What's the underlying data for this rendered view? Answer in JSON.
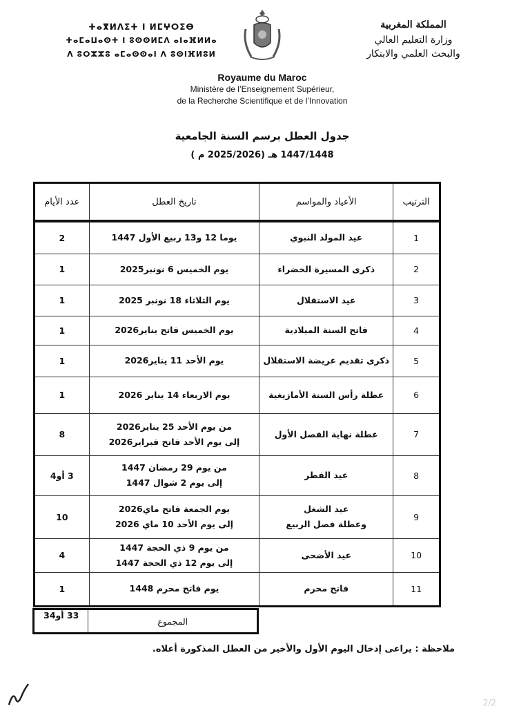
{
  "header": {
    "tifinagh_lines": [
      "ⵜⴰⴳⵍⴷⵉⵜ ⵏ ⵍⵎⵖⵔⵉⴱ",
      "ⵜⴰⵎⴰⵡⴰⵙⵜ ⵏ ⵓⵙⵙⵍⵎⴷ ⴰⵏⴰⴼⵍⵍⴰ",
      "ⴷ ⵓⵔⵣⵣⵓ ⴰⵎⴰⵙⵙⴰⵏ ⴷ ⵓⵙⵏⴼⵍⵓⵍ"
    ],
    "arabic_lines": [
      "المملكة المغربية",
      "وزارة التعليم العالي",
      "والبحث العلمي والابتكار"
    ],
    "french_title": "Royaume du Maroc",
    "french_lines": [
      "Ministère de l’Enseignement Supérieur,",
      "de la Recherche Scientifique et de l’Innovation"
    ],
    "emblem": "moroccan-coat-of-arms"
  },
  "document": {
    "title": "جدول العطل برسم السنة الجامعية",
    "subtitle": "1447/1448 هـ (2025/2026 م )"
  },
  "table": {
    "columns": [
      "الترتيب",
      "الأعياد والمواسم",
      "تاريخ العطل",
      "عدد الأيام"
    ],
    "rows": [
      {
        "rank": "1",
        "name": [
          "عيد المولد النبوي"
        ],
        "dates": [
          "يوما 12 و13 ربيع الأول 1447"
        ],
        "days": "2"
      },
      {
        "rank": "2",
        "name": [
          "ذكرى المسيرة الخضراء"
        ],
        "dates": [
          "يوم الخميس 6 نونبر2025"
        ],
        "days": "1"
      },
      {
        "rank": "3",
        "name": [
          "عيد الاستقلال"
        ],
        "dates": [
          "يوم الثلاثاء 18 نونبر 2025"
        ],
        "days": "1"
      },
      {
        "rank": "4",
        "name": [
          "فاتح السنة الميلادية"
        ],
        "dates": [
          "يوم الخميس فاتح يناير2026"
        ],
        "days": "1"
      },
      {
        "rank": "5",
        "name": [
          "ذكرى تقديم عريضة الاستقلال"
        ],
        "dates": [
          "يوم الأحد 11 يناير2026"
        ],
        "days": "1"
      },
      {
        "rank": "6",
        "name": [
          "عطلة رأس السنة الأمازيغية"
        ],
        "dates": [
          "يوم الاربعاء 14 يناير 2026"
        ],
        "days": "1"
      },
      {
        "rank": "7",
        "name": [
          "عطلة نهاية الفصل الأول"
        ],
        "dates": [
          "من يوم الأحد 25 يناير2026",
          "إلى يوم الأحد فاتح فبراير2026"
        ],
        "days": "8"
      },
      {
        "rank": "8",
        "name": [
          "عيد الفطر"
        ],
        "dates": [
          "من يوم 29 رمضان 1447",
          "إلى يوم 2 شوال 1447"
        ],
        "days": "3 أو4"
      },
      {
        "rank": "9",
        "name": [
          "عيد الشغل",
          "وعطلة فصل الربيع"
        ],
        "dates": [
          "يوم الجمعة فاتح ماي2026",
          "إلى يوم الأحد 10 ماي 2026"
        ],
        "days": "10"
      },
      {
        "rank": "10",
        "name": [
          "عيد الأضحى"
        ],
        "dates": [
          "من يوم 9 ذي الحجة 1447",
          "إلى يوم 12 ذي الحجة 1447"
        ],
        "days": "4"
      },
      {
        "rank": "11",
        "name": [
          "فاتح محرم"
        ],
        "dates": [
          "يوم فاتح محرم 1448"
        ],
        "days": "1"
      }
    ],
    "total_label": "المجموع",
    "total_value": "33 أو34"
  },
  "note": "ملاحظة : يراعى إدخال اليوم الأول والأخير من العطل المذكورة أعلاه.",
  "page_number": "2/2"
}
